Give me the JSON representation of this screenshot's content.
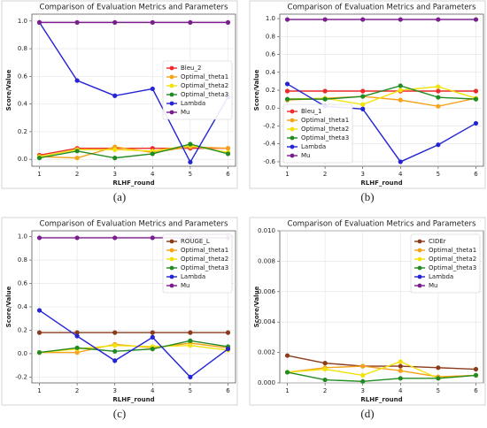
{
  "chart_data": [
    {
      "type": "line",
      "panel_label": "(a)",
      "title": "Comparison of Evaluation Metrics and Parameters",
      "xlabel": "RLHF_round",
      "ylabel": "Score/Value",
      "x": [
        1,
        2,
        3,
        4,
        5,
        6
      ],
      "xlim": [
        0.8,
        6.2
      ],
      "xticks": [
        1,
        2,
        3,
        4,
        5,
        6
      ],
      "ylim": [
        -0.05,
        1.05
      ],
      "yticks": [
        {
          "value": 0,
          "label": "0.0"
        },
        0.2,
        0.4,
        0.6,
        0.8,
        {
          "value": 1,
          "label": "1.0"
        }
      ],
      "grid": true,
      "legend": "center right",
      "series": [
        {
          "name": "Bleu_2",
          "color": "#ee2b2b",
          "values": [
            0.03,
            0.08,
            0.08,
            0.08,
            0.08,
            0.08
          ]
        },
        {
          "name": "Optimal_theta1",
          "color": "#f5a31a",
          "values": [
            0.02,
            0.01,
            0.09,
            0.05,
            0.09,
            0.08
          ]
        },
        {
          "name": "Optimal_theta2",
          "color": "#f2e20a",
          "values": [
            0.02,
            0.07,
            0.07,
            0.06,
            0.1,
            0.05
          ]
        },
        {
          "name": "Optimal_theta3",
          "color": "#238b23",
          "values": [
            0.01,
            0.06,
            0.01,
            0.04,
            0.11,
            0.04
          ]
        },
        {
          "name": "Lambda",
          "color": "#2424d4",
          "values": [
            0.99,
            0.57,
            0.46,
            0.51,
            -0.02,
            0.45
          ]
        },
        {
          "name": "Mu",
          "color": "#7a1e8e",
          "values": [
            0.99,
            0.99,
            0.99,
            0.99,
            0.99,
            0.99
          ]
        }
      ]
    },
    {
      "type": "line",
      "panel_label": "(b)",
      "title": "Comparison of Evaluation Metrics and Parameters",
      "xlabel": "RLHF_round",
      "ylabel": "Score/Value",
      "x": [
        1,
        2,
        3,
        4,
        5,
        6
      ],
      "xlim": [
        0.8,
        6.2
      ],
      "xticks": [
        1,
        2,
        3,
        4,
        5,
        6
      ],
      "ylim": [
        -0.65,
        1.05
      ],
      "yticks": [
        -0.6,
        -0.4,
        -0.2,
        {
          "value": 0,
          "label": "0.0"
        },
        0.2,
        0.4,
        0.6,
        0.8,
        {
          "value": 1,
          "label": "1.0"
        }
      ],
      "grid": true,
      "legend": "lower left",
      "series": [
        {
          "name": "Bleu_1",
          "color": "#ee2b2b",
          "values": [
            0.19,
            0.19,
            0.19,
            0.19,
            0.19,
            0.19
          ]
        },
        {
          "name": "Optimal_theta1",
          "color": "#f5a31a",
          "values": [
            0.09,
            0.11,
            0.13,
            0.09,
            0.02,
            0.11
          ]
        },
        {
          "name": "Optimal_theta2",
          "color": "#f2e20a",
          "values": [
            0.1,
            0.11,
            0.04,
            0.2,
            0.24,
            0.11
          ]
        },
        {
          "name": "Optimal_theta3",
          "color": "#238b23",
          "values": [
            0.1,
            0.1,
            0.13,
            0.25,
            0.12,
            0.1
          ]
        },
        {
          "name": "Lambda",
          "color": "#2424d4",
          "values": [
            0.27,
            0.02,
            -0.01,
            -0.6,
            -0.41,
            -0.17
          ]
        },
        {
          "name": "Mu",
          "color": "#7a1e8e",
          "values": [
            0.99,
            0.99,
            0.99,
            0.99,
            0.99,
            0.99
          ]
        }
      ]
    },
    {
      "type": "line",
      "panel_label": "(c)",
      "title": "Comparison of Evaluation Metrics and Parameters",
      "xlabel": "RLHF_round",
      "ylabel": "Score/Value",
      "x": [
        1,
        2,
        3,
        4,
        5,
        6
      ],
      "xlim": [
        0.8,
        6.2
      ],
      "xticks": [
        1,
        2,
        3,
        4,
        5,
        6
      ],
      "ylim": [
        -0.25,
        1.05
      ],
      "yticks": [
        -0.2,
        {
          "value": 0,
          "label": "0.0"
        },
        0.2,
        0.4,
        0.6,
        0.8,
        {
          "value": 1,
          "label": "1.0"
        }
      ],
      "grid": true,
      "legend": "upper right",
      "series": [
        {
          "name": "ROUGE_L",
          "color": "#8b3a1a",
          "values": [
            0.18,
            0.18,
            0.18,
            0.18,
            0.18,
            0.18
          ]
        },
        {
          "name": "Optimal_theta1",
          "color": "#f5a31a",
          "values": [
            0.01,
            0.01,
            0.08,
            0.05,
            0.09,
            0.05
          ]
        },
        {
          "name": "Optimal_theta2",
          "color": "#f2e20a",
          "values": [
            0.01,
            0.04,
            0.07,
            0.06,
            0.07,
            0.03
          ]
        },
        {
          "name": "Optimal_theta3",
          "color": "#238b23",
          "values": [
            0.01,
            0.05,
            0.02,
            0.04,
            0.11,
            0.06
          ]
        },
        {
          "name": "Lambda",
          "color": "#2424d4",
          "values": [
            0.37,
            0.15,
            -0.06,
            0.14,
            -0.2,
            0.04
          ]
        },
        {
          "name": "Mu",
          "color": "#7a1e8e",
          "values": [
            0.99,
            0.99,
            0.99,
            0.99,
            0.99,
            0.99
          ]
        }
      ]
    },
    {
      "type": "line",
      "panel_label": "(d)",
      "title": "Comparison of Evaluation Metrics and Parameters",
      "xlabel": "RLHF_round",
      "ylabel": "Score/Value",
      "x": [
        1,
        2,
        3,
        4,
        5,
        6
      ],
      "xlim": [
        0.8,
        6.2
      ],
      "xticks": [
        1,
        2,
        3,
        4,
        5,
        6
      ],
      "ylim": [
        0,
        0.01
      ],
      "yticks": [
        {
          "value": 0,
          "label": "0.000"
        },
        {
          "value": 0.002,
          "label": "0.002"
        },
        {
          "value": 0.004,
          "label": "0.004"
        },
        {
          "value": 0.006,
          "label": "0.006"
        },
        {
          "value": 0.008,
          "label": "0.008"
        },
        {
          "value": 0.01,
          "label": "0.010"
        }
      ],
      "grid": true,
      "legend": "upper right",
      "series": [
        {
          "name": "CIDEr",
          "color": "#8b3a1a",
          "values": [
            0.0018,
            0.0013,
            0.0011,
            0.0011,
            0.001,
            0.0009
          ]
        },
        {
          "name": "Optimal_theta1",
          "color": "#f5a31a",
          "values": [
            0.0007,
            0.001,
            0.0011,
            0.0008,
            0.0004,
            0.0005
          ]
        },
        {
          "name": "Optimal_theta2",
          "color": "#f2e20a",
          "values": [
            0.0007,
            0.0009,
            0.0005,
            0.0014,
            0.0003,
            0.0005
          ]
        },
        {
          "name": "Optimal_theta3",
          "color": "#238b23",
          "values": [
            0.0007,
            0.0002,
            0.0001,
            0.0003,
            0.0003,
            0.0005
          ]
        },
        {
          "name": "Lambda",
          "color": "#2424d4",
          "values": [
            null,
            null,
            null,
            null,
            null,
            null
          ]
        },
        {
          "name": "Mu",
          "color": "#7a1e8e",
          "values": [
            null,
            null,
            null,
            null,
            null,
            null
          ]
        }
      ]
    }
  ]
}
